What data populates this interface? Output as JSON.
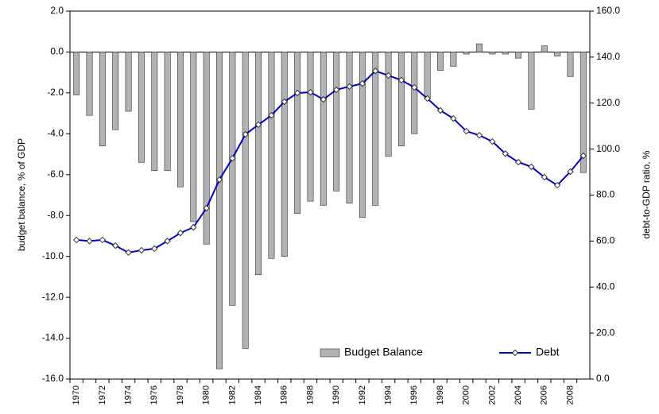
{
  "chart_data": {
    "type": "bar_line",
    "categories": [
      "1970",
      null,
      "1972",
      null,
      "1974",
      null,
      "1976",
      null,
      "1978",
      null,
      "1980",
      null,
      "1982",
      null,
      "1984",
      null,
      "1986",
      null,
      "1988",
      null,
      "1990",
      null,
      "1992",
      null,
      "1994",
      null,
      "1996",
      null,
      "1998",
      null,
      "2000",
      null,
      "2002",
      null,
      "2004",
      null,
      "2006",
      null,
      "2008",
      null
    ],
    "series": [
      {
        "name": "Budget Balance",
        "type": "bar",
        "color": "#b2b2b2",
        "axis": "y",
        "values": [
          -2.1,
          -3.1,
          -4.6,
          -3.8,
          -2.9,
          -5.4,
          -5.8,
          -5.8,
          -6.6,
          -8.3,
          -9.4,
          -15.5,
          -12.4,
          -14.5,
          -10.9,
          -10.1,
          -10.0,
          -7.9,
          -7.3,
          -7.5,
          -6.8,
          -7.4,
          -8.1,
          -7.5,
          -5.1,
          -4.6,
          -4.0,
          -2.3,
          -0.9,
          -0.7,
          -0.1,
          0.4,
          -0.1,
          -0.1,
          -0.3,
          -2.8,
          0.3,
          -0.2,
          -1.2,
          -5.9
        ]
      },
      {
        "name": "Debt",
        "type": "line",
        "color": "#0000cc",
        "axis": "y2",
        "values": [
          60.5,
          60.0,
          60.5,
          58.0,
          55.0,
          56.0,
          56.7,
          60.0,
          63.5,
          66.0,
          74.3,
          86.7,
          96.0,
          106.4,
          110.6,
          114.7,
          120.6,
          124.4,
          124.7,
          121.6,
          125.8,
          127.2,
          128.5,
          134.0,
          132.0,
          130.0,
          126.8,
          122.0,
          116.8,
          113.3,
          107.8,
          106.0,
          103.3,
          98.0,
          94.3,
          92.3,
          87.8,
          84.3,
          90.2,
          97.1
        ]
      }
    ],
    "y_label": "budget balance, % of GDP",
    "y2_label": "debt-to-GDP ratio, %",
    "ylim": [
      -16,
      2
    ],
    "yticks": [
      {
        "value": 2,
        "label": "2.0"
      },
      {
        "value": 0,
        "label": "0.0"
      },
      {
        "value": -2,
        "label": "-2.0"
      },
      {
        "value": -4,
        "label": "-4.0"
      },
      {
        "value": -6,
        "label": "-6.0"
      },
      {
        "value": -8,
        "label": "-8.0"
      },
      {
        "value": -10,
        "label": "-10.0"
      },
      {
        "value": -12,
        "label": "-12.0"
      },
      {
        "value": -14,
        "label": "-14.0"
      },
      {
        "value": -16,
        "label": "-16.0"
      }
    ],
    "y2lim": [
      0,
      160
    ],
    "y2ticks": [
      {
        "value": 0,
        "label": "0.0"
      },
      {
        "value": 20,
        "label": "20.0"
      },
      {
        "value": 40,
        "label": "40.0"
      },
      {
        "value": 60,
        "label": "60.0"
      },
      {
        "value": 80,
        "label": "80.0"
      },
      {
        "value": 100,
        "label": "100.0"
      },
      {
        "value": 120,
        "label": "120.0"
      },
      {
        "value": 140,
        "label": "140.0"
      },
      {
        "value": 160,
        "label": "160.0"
      }
    ],
    "legend": "lower right",
    "grid": false
  }
}
